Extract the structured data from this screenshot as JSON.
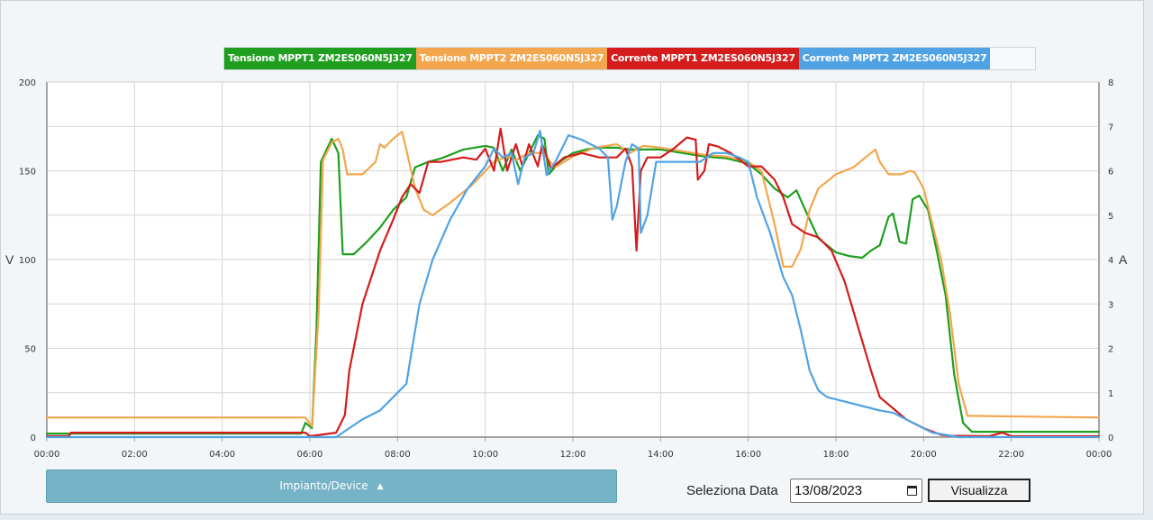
{
  "chart_data": {
    "type": "line",
    "title": "",
    "xlabel": "",
    "ylabel_left": "V",
    "ylabel_right": "A",
    "x_range": [
      0,
      24
    ],
    "x_ticks": [
      "00:00",
      "02:00",
      "04:00",
      "06:00",
      "08:00",
      "10:00",
      "12:00",
      "14:00",
      "16:00",
      "18:00",
      "20:00",
      "22:00",
      "00:00"
    ],
    "y_left_range": [
      0,
      200
    ],
    "y_left_ticks": [
      "0",
      "50",
      "100",
      "150",
      "200"
    ],
    "y_right_range": [
      0,
      8
    ],
    "y_right_ticks": [
      "0",
      "1",
      "2",
      "3",
      "4",
      "5",
      "6",
      "7",
      "8"
    ],
    "grid": true,
    "legend_position": "top-center",
    "series": [
      {
        "name": "Tensione MPPT1 ZM2ES060N5J327",
        "axis": "left",
        "color": "#1f9e1f",
        "points": [
          [
            0,
            2
          ],
          [
            5.8,
            2
          ],
          [
            5.9,
            8
          ],
          [
            6.05,
            5
          ],
          [
            6.15,
            60
          ],
          [
            6.25,
            155
          ],
          [
            6.5,
            168
          ],
          [
            6.65,
            160
          ],
          [
            6.75,
            103
          ],
          [
            7.0,
            103
          ],
          [
            7.3,
            110
          ],
          [
            7.6,
            118
          ],
          [
            7.9,
            128
          ],
          [
            8.2,
            135
          ],
          [
            8.4,
            152
          ],
          [
            8.7,
            155
          ],
          [
            9.0,
            157
          ],
          [
            9.5,
            162
          ],
          [
            10.0,
            164
          ],
          [
            10.2,
            163
          ],
          [
            10.4,
            150
          ],
          [
            10.6,
            162
          ],
          [
            10.8,
            150
          ],
          [
            11.0,
            160
          ],
          [
            11.2,
            170
          ],
          [
            11.35,
            168
          ],
          [
            11.45,
            148
          ],
          [
            11.7,
            155
          ],
          [
            12.0,
            160
          ],
          [
            12.3,
            162
          ],
          [
            12.6,
            163
          ],
          [
            13.0,
            163
          ],
          [
            13.3,
            162
          ],
          [
            13.6,
            162
          ],
          [
            14.0,
            162
          ],
          [
            14.5,
            160
          ],
          [
            15.0,
            158
          ],
          [
            15.5,
            157
          ],
          [
            16.0,
            154
          ],
          [
            16.3,
            148
          ],
          [
            16.6,
            140
          ],
          [
            16.9,
            135
          ],
          [
            17.1,
            139
          ],
          [
            17.3,
            128
          ],
          [
            17.6,
            112
          ],
          [
            18.0,
            104
          ],
          [
            18.3,
            102
          ],
          [
            18.6,
            101
          ],
          [
            18.8,
            105
          ],
          [
            19.0,
            108
          ],
          [
            19.2,
            124
          ],
          [
            19.3,
            126
          ],
          [
            19.45,
            110
          ],
          [
            19.6,
            109
          ],
          [
            19.75,
            134
          ],
          [
            19.9,
            136
          ],
          [
            20.1,
            128
          ],
          [
            20.3,
            105
          ],
          [
            20.5,
            80
          ],
          [
            20.7,
            35
          ],
          [
            20.9,
            8
          ],
          [
            21.1,
            3
          ],
          [
            24.0,
            3
          ]
        ]
      },
      {
        "name": "Tensione MPPT2 ZM2ES060N5J327",
        "axis": "left",
        "color": "#f3a64e",
        "points": [
          [
            0,
            11
          ],
          [
            5.9,
            11
          ],
          [
            6.05,
            6
          ],
          [
            6.2,
            70
          ],
          [
            6.3,
            156
          ],
          [
            6.5,
            166
          ],
          [
            6.65,
            168
          ],
          [
            6.75,
            162
          ],
          [
            6.85,
            148
          ],
          [
            7.2,
            148
          ],
          [
            7.5,
            155
          ],
          [
            7.6,
            165
          ],
          [
            7.7,
            163
          ],
          [
            7.9,
            168
          ],
          [
            8.1,
            172
          ],
          [
            8.2,
            162
          ],
          [
            8.4,
            140
          ],
          [
            8.6,
            128
          ],
          [
            8.8,
            125
          ],
          [
            9.2,
            132
          ],
          [
            9.7,
            142
          ],
          [
            10.2,
            155
          ],
          [
            10.5,
            158
          ],
          [
            10.7,
            156
          ],
          [
            11.0,
            160
          ],
          [
            11.3,
            160
          ],
          [
            11.6,
            152
          ],
          [
            12.0,
            158
          ],
          [
            12.5,
            163
          ],
          [
            13.0,
            165
          ],
          [
            13.3,
            160
          ],
          [
            13.6,
            164
          ],
          [
            14.0,
            163
          ],
          [
            14.5,
            161
          ],
          [
            15.0,
            159
          ],
          [
            15.5,
            158
          ],
          [
            16.0,
            155
          ],
          [
            16.3,
            150
          ],
          [
            16.6,
            120
          ],
          [
            16.8,
            96
          ],
          [
            17.0,
            96
          ],
          [
            17.2,
            106
          ],
          [
            17.4,
            128
          ],
          [
            17.6,
            140
          ],
          [
            18.0,
            148
          ],
          [
            18.4,
            152
          ],
          [
            18.7,
            158
          ],
          [
            18.9,
            162
          ],
          [
            19.0,
            155
          ],
          [
            19.2,
            148
          ],
          [
            19.5,
            148
          ],
          [
            19.7,
            150
          ],
          [
            19.8,
            149
          ],
          [
            20.0,
            140
          ],
          [
            20.2,
            120
          ],
          [
            20.4,
            100
          ],
          [
            20.6,
            70
          ],
          [
            20.8,
            30
          ],
          [
            21.0,
            12
          ],
          [
            24.0,
            11
          ]
        ]
      },
      {
        "name": "Corrente MPPT1 ZM2ES060N5J327",
        "axis": "right",
        "color": "#d41c1c",
        "points": [
          [
            0,
            0.02
          ],
          [
            0.5,
            0.02
          ],
          [
            0.55,
            0.1
          ],
          [
            5.9,
            0.1
          ],
          [
            6.0,
            0.02
          ],
          [
            6.6,
            0.1
          ],
          [
            6.8,
            0.5
          ],
          [
            6.9,
            1.5
          ],
          [
            7.2,
            3.0
          ],
          [
            7.6,
            4.2
          ],
          [
            7.9,
            4.9
          ],
          [
            8.1,
            5.4
          ],
          [
            8.3,
            5.7
          ],
          [
            8.5,
            5.5
          ],
          [
            8.7,
            6.2
          ],
          [
            9.0,
            6.2
          ],
          [
            9.5,
            6.3
          ],
          [
            9.8,
            6.25
          ],
          [
            10.0,
            6.5
          ],
          [
            10.2,
            6.0
          ],
          [
            10.35,
            6.95
          ],
          [
            10.5,
            6.0
          ],
          [
            10.7,
            6.6
          ],
          [
            10.85,
            6.1
          ],
          [
            11.0,
            6.6
          ],
          [
            11.2,
            6.1
          ],
          [
            11.3,
            6.6
          ],
          [
            11.5,
            6.05
          ],
          [
            11.8,
            6.3
          ],
          [
            12.2,
            6.4
          ],
          [
            12.6,
            6.3
          ],
          [
            13.0,
            6.3
          ],
          [
            13.2,
            6.5
          ],
          [
            13.35,
            6.1
          ],
          [
            13.45,
            4.2
          ],
          [
            13.55,
            6.0
          ],
          [
            13.7,
            6.3
          ],
          [
            14.0,
            6.3
          ],
          [
            14.3,
            6.5
          ],
          [
            14.6,
            6.75
          ],
          [
            14.8,
            6.7
          ],
          [
            14.85,
            5.8
          ],
          [
            15.0,
            6.0
          ],
          [
            15.1,
            6.6
          ],
          [
            15.3,
            6.55
          ],
          [
            15.6,
            6.4
          ],
          [
            16.0,
            6.1
          ],
          [
            16.3,
            6.1
          ],
          [
            16.6,
            5.8
          ],
          [
            16.8,
            5.4
          ],
          [
            17.0,
            4.8
          ],
          [
            17.3,
            4.6
          ],
          [
            17.6,
            4.5
          ],
          [
            17.9,
            4.2
          ],
          [
            18.2,
            3.5
          ],
          [
            18.5,
            2.5
          ],
          [
            18.8,
            1.5
          ],
          [
            19.0,
            0.9
          ],
          [
            19.3,
            0.65
          ],
          [
            19.6,
            0.4
          ],
          [
            20.0,
            0.2
          ],
          [
            20.4,
            0.05
          ],
          [
            20.6,
            0.03
          ],
          [
            21.5,
            0.02
          ],
          [
            21.8,
            0.1
          ],
          [
            22.0,
            0.02
          ],
          [
            24.0,
            0.02
          ]
        ]
      },
      {
        "name": "Corrente MPPT2 ZM2ES060N5J327",
        "axis": "right",
        "color": "#4fa3e5",
        "points": [
          [
            0,
            0
          ],
          [
            6.6,
            0
          ],
          [
            6.9,
            0.2
          ],
          [
            7.2,
            0.4
          ],
          [
            7.6,
            0.6
          ],
          [
            7.9,
            0.9
          ],
          [
            8.2,
            1.2
          ],
          [
            8.3,
            1.8
          ],
          [
            8.5,
            3.0
          ],
          [
            8.8,
            4.0
          ],
          [
            9.2,
            4.9
          ],
          [
            9.6,
            5.6
          ],
          [
            10.0,
            6.1
          ],
          [
            10.2,
            6.5
          ],
          [
            10.4,
            6.3
          ],
          [
            10.6,
            6.4
          ],
          [
            10.75,
            5.7
          ],
          [
            10.9,
            6.3
          ],
          [
            11.1,
            6.4
          ],
          [
            11.25,
            6.9
          ],
          [
            11.4,
            5.9
          ],
          [
            11.6,
            6.2
          ],
          [
            11.9,
            6.8
          ],
          [
            12.2,
            6.7
          ],
          [
            12.6,
            6.5
          ],
          [
            12.8,
            6.3
          ],
          [
            12.9,
            4.9
          ],
          [
            13.0,
            5.2
          ],
          [
            13.2,
            6.2
          ],
          [
            13.35,
            6.6
          ],
          [
            13.5,
            6.5
          ],
          [
            13.55,
            4.6
          ],
          [
            13.7,
            5.0
          ],
          [
            13.9,
            6.2
          ],
          [
            14.2,
            6.2
          ],
          [
            14.6,
            6.2
          ],
          [
            14.9,
            6.2
          ],
          [
            15.2,
            6.4
          ],
          [
            15.5,
            6.4
          ],
          [
            15.8,
            6.3
          ],
          [
            16.0,
            6.2
          ],
          [
            16.2,
            5.4
          ],
          [
            16.5,
            4.6
          ],
          [
            16.8,
            3.6
          ],
          [
            17.0,
            3.2
          ],
          [
            17.2,
            2.4
          ],
          [
            17.4,
            1.5
          ],
          [
            17.6,
            1.05
          ],
          [
            17.8,
            0.9
          ],
          [
            18.2,
            0.8
          ],
          [
            18.6,
            0.7
          ],
          [
            19.0,
            0.6
          ],
          [
            19.3,
            0.55
          ],
          [
            19.6,
            0.4
          ],
          [
            19.9,
            0.25
          ],
          [
            20.2,
            0.1
          ],
          [
            20.5,
            0.05
          ],
          [
            20.8,
            0
          ],
          [
            24.0,
            0
          ]
        ]
      }
    ]
  },
  "controls": {
    "device_button_label": "Impianto/Device",
    "date_label": "Seleziona Data",
    "date_value": "13/08/2023",
    "view_button_label": "Visualizza"
  }
}
